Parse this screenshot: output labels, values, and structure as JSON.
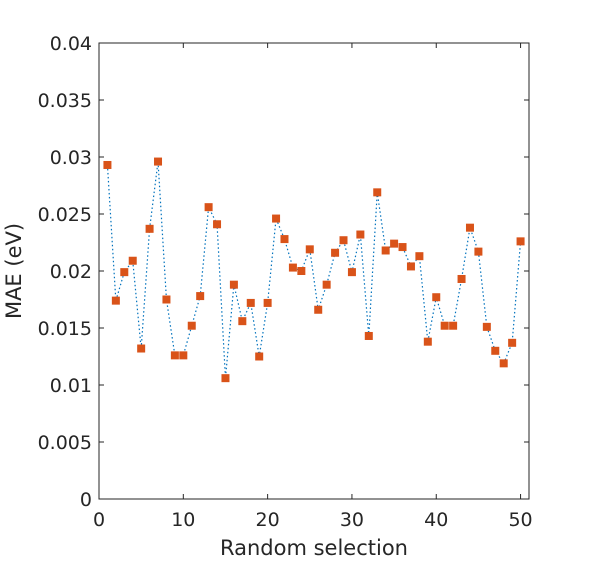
{
  "chart_data": {
    "type": "scatter",
    "title": "",
    "xlabel": "Random selection",
    "ylabel": "MAE (eV)",
    "xlim": [
      0,
      51
    ],
    "ylim": [
      0,
      0.04
    ],
    "xticks": [
      0,
      10,
      20,
      30,
      40,
      50
    ],
    "xtick_labels": [
      "0",
      "10",
      "20",
      "30",
      "40",
      "50"
    ],
    "yticks": [
      0,
      0.005,
      0.01,
      0.015,
      0.02,
      0.025,
      0.03,
      0.035,
      0.04
    ],
    "ytick_labels": [
      "0",
      "0.005",
      "0.01",
      "0.015",
      "0.02",
      "0.025",
      "0.03",
      "0.035",
      "0.04"
    ],
    "grid": false,
    "marker_color": "#d95319",
    "line_color": "#0072bd",
    "line_style": "dotted",
    "x": [
      1,
      2,
      3,
      4,
      5,
      6,
      7,
      8,
      9,
      10,
      11,
      12,
      13,
      14,
      15,
      16,
      17,
      18,
      19,
      20,
      21,
      22,
      23,
      24,
      25,
      26,
      27,
      28,
      29,
      30,
      31,
      32,
      33,
      34,
      35,
      36,
      37,
      38,
      39,
      40,
      41,
      42,
      43,
      44,
      45,
      46,
      47,
      48,
      49,
      50
    ],
    "y": [
      0.0293,
      0.0174,
      0.0199,
      0.0209,
      0.0132,
      0.0237,
      0.0296,
      0.0175,
      0.0126,
      0.0126,
      0.0152,
      0.0178,
      0.0256,
      0.0241,
      0.0106,
      0.0188,
      0.0156,
      0.0172,
      0.0125,
      0.0172,
      0.0246,
      0.0228,
      0.0203,
      0.02,
      0.0219,
      0.0166,
      0.0188,
      0.0216,
      0.0227,
      0.0199,
      0.0232,
      0.0143,
      0.0269,
      0.0218,
      0.0224,
      0.0221,
      0.0204,
      0.0213,
      0.0138,
      0.0177,
      0.0152,
      0.0152,
      0.0193,
      0.0238,
      0.0217,
      0.0151,
      0.013,
      0.0119,
      0.0137,
      0.0226
    ]
  }
}
